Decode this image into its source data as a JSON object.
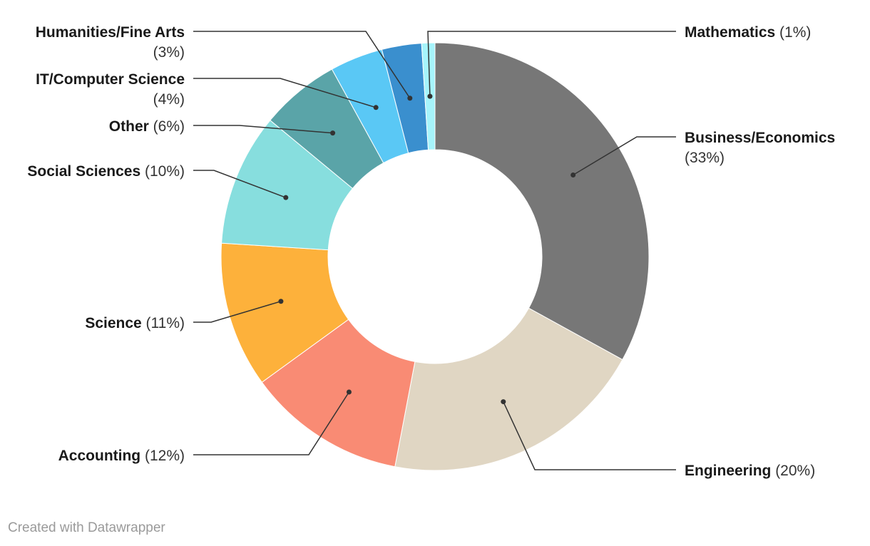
{
  "chart_data": {
    "type": "pie",
    "variant": "donut",
    "title": "",
    "categories": [
      "Business/Economics",
      "Engineering",
      "Accounting",
      "Science",
      "Social Sciences",
      "Other",
      "IT/Computer Science",
      "Humanities/Fine Arts",
      "Mathematics"
    ],
    "values": [
      33,
      20,
      12,
      11,
      10,
      6,
      4,
      3,
      1
    ],
    "value_labels": [
      "(33%)",
      "(20%)",
      "(12%)",
      "(11%)",
      "(10%)",
      "(6%)",
      "(4%)",
      "(3%)",
      "(1%)"
    ],
    "colors": [
      "#777777",
      "#e0d6c3",
      "#f98b74",
      "#fdb13b",
      "#87dede",
      "#5aa4a8",
      "#5ac8f5",
      "#3a8fce",
      "#a6f4fb"
    ],
    "legend": "none"
  },
  "footer": {
    "credit": "Created with Datawrapper"
  }
}
